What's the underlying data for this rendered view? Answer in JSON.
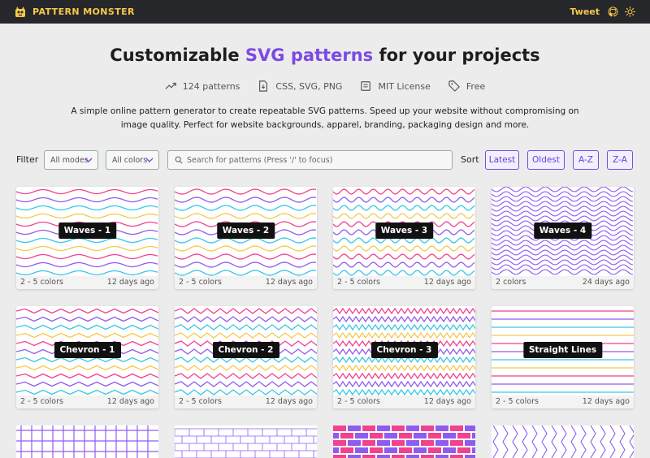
{
  "header": {
    "brand": "PATTERN MONSTER",
    "tweet": "Tweet"
  },
  "hero": {
    "title_prefix": "Customizable ",
    "title_accent": "SVG patterns",
    "title_suffix": " for your projects",
    "features": [
      {
        "icon": "trend-up-icon",
        "label": "124 patterns"
      },
      {
        "icon": "file-icon",
        "label": "CSS, SVG, PNG"
      },
      {
        "icon": "license-icon",
        "label": "MIT License"
      },
      {
        "icon": "tag-icon",
        "label": "Free"
      }
    ],
    "description": "A simple online pattern generator to create repeatable SVG patterns. Speed up your website without compromising on image quality. Perfect for website backgrounds, apparel, branding, packaging design and more."
  },
  "filters": {
    "label": "Filter",
    "modes": "All modes",
    "colors": "All colors",
    "search_placeholder": "Search for patterns (Press '/' to focus)",
    "sort_label": "Sort",
    "sort_options": [
      "Latest",
      "Oldest",
      "A-Z",
      "Z-A"
    ]
  },
  "colors": {
    "accent": "#7b4ae2",
    "brand_yellow": "#f6c94a",
    "pink": "#f0428f",
    "yellow": "#f6c94a",
    "cyan": "#39c6e6",
    "purple": "#8f5cf0"
  },
  "patterns": [
    {
      "name": "Waves - 1",
      "colors": "2 - 5 colors",
      "age": "12 days ago"
    },
    {
      "name": "Waves - 2",
      "colors": "2 - 5 colors",
      "age": "12 days ago"
    },
    {
      "name": "Waves - 3",
      "colors": "2 - 5 colors",
      "age": "12 days ago"
    },
    {
      "name": "Waves - 4",
      "colors": "2 colors",
      "age": "24 days ago"
    },
    {
      "name": "Chevron - 1",
      "colors": "2 - 5 colors",
      "age": "12 days ago"
    },
    {
      "name": "Chevron - 2",
      "colors": "2 - 5 colors",
      "age": "12 days ago"
    },
    {
      "name": "Chevron - 3",
      "colors": "2 - 5 colors",
      "age": "12 days ago"
    },
    {
      "name": "Straight Lines",
      "colors": "2 - 5 colors",
      "age": "12 days ago"
    }
  ]
}
